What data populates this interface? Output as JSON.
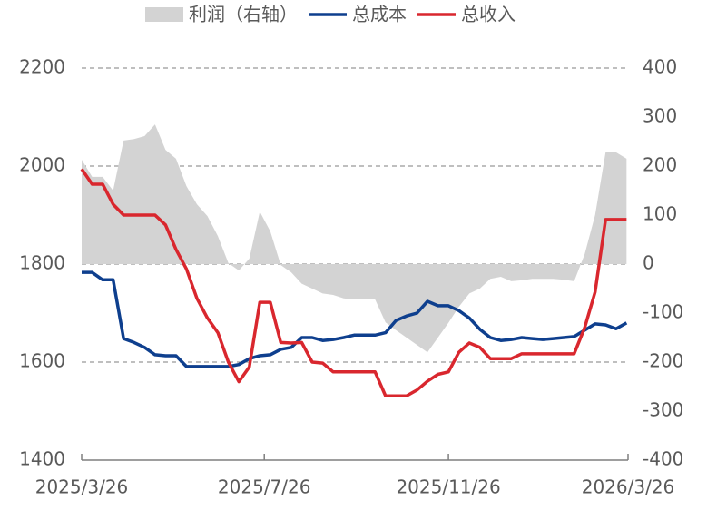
{
  "chart_data": {
    "type": "line",
    "x": [
      "2025/3/26",
      "2025/4/2",
      "2025/4/9",
      "2025/4/16",
      "2025/4/23",
      "2025/4/30",
      "2025/5/7",
      "2025/5/14",
      "2025/5/21",
      "2025/5/28",
      "2025/6/4",
      "2025/6/11",
      "2025/6/18",
      "2025/6/25",
      "2025/7/2",
      "2025/7/9",
      "2025/7/16",
      "2025/7/23",
      "2025/7/30",
      "2025/8/6",
      "2025/8/13",
      "2025/8/20",
      "2025/8/27",
      "2025/9/3",
      "2025/9/10",
      "2025/9/17",
      "2025/9/24",
      "2025/10/1",
      "2025/10/8",
      "2025/10/15",
      "2025/10/22",
      "2025/10/29",
      "2025/11/5",
      "2025/11/12",
      "2025/11/19",
      "2025/11/26",
      "2025/12/3",
      "2025/12/10",
      "2025/12/17",
      "2025/12/24",
      "2025/12/31",
      "2026/1/7",
      "2026/1/14",
      "2026/1/21",
      "2026/1/28",
      "2026/2/4",
      "2026/2/11",
      "2026/2/18",
      "2026/2/25",
      "2026/3/4",
      "2026/3/11",
      "2026/3/18",
      "2026/3/25"
    ],
    "series": [
      {
        "name": "利润（右轴）",
        "color": "#d3d3d3",
        "axis": "y2",
        "kind": "area",
        "values": [
          213,
          178,
          178,
          150,
          252,
          255,
          261,
          285,
          233,
          215,
          159,
          122,
          98,
          57,
          2,
          -13,
          11,
          107,
          67,
          -2,
          -17,
          -40,
          -50,
          -60,
          -63,
          -70,
          -72,
          -72,
          -72,
          -119,
          -135,
          -150,
          -165,
          -180,
          -150,
          -120,
          -87,
          -60,
          -50,
          -30,
          -26,
          -35,
          -33,
          -30,
          -30,
          -30,
          -32,
          -35,
          20,
          100,
          228,
          228,
          215
        ]
      },
      {
        "name": "总成本",
        "color": "#0e3f8e",
        "values": [
          1783,
          1783,
          1768,
          1768,
          1648,
          1640,
          1630,
          1615,
          1613,
          1613,
          1591,
          1591,
          1591,
          1591,
          1591,
          1595,
          1607,
          1613,
          1615,
          1626,
          1630,
          1650,
          1650,
          1644,
          1646,
          1650,
          1655,
          1655,
          1655,
          1660,
          1685,
          1694,
          1700,
          1724,
          1715,
          1715,
          1705,
          1690,
          1667,
          1650,
          1644,
          1646,
          1650,
          1648,
          1646,
          1648,
          1650,
          1652,
          1665,
          1678,
          1676,
          1668,
          1680
        ]
      },
      {
        "name": "总收入",
        "color": "#d9272e",
        "values": [
          1994,
          1963,
          1963,
          1922,
          1900,
          1900,
          1900,
          1900,
          1880,
          1830,
          1790,
          1730,
          1690,
          1660,
          1600,
          1560,
          1590,
          1722,
          1722,
          1640,
          1639,
          1640,
          1600,
          1598,
          1580,
          1580,
          1580,
          1580,
          1580,
          1531,
          1531,
          1531,
          1543,
          1561,
          1575,
          1580,
          1620,
          1639,
          1630,
          1607,
          1607,
          1607,
          1617,
          1617,
          1617,
          1617,
          1617,
          1617,
          1670,
          1743,
          1891,
          1891,
          1891
        ]
      }
    ],
    "xlim": [
      "2025/3/26",
      "2026/3/26"
    ],
    "xticks": [
      "2025/3/26",
      "2025/7/26",
      "2025/11/26",
      "2026/3/26"
    ],
    "ylim": [
      1400,
      2200
    ],
    "yticks": [
      1400,
      1600,
      1800,
      2000,
      2200
    ],
    "y2lim": [
      -400,
      400
    ],
    "y2ticks": [
      -400,
      -300,
      -200,
      -100,
      0,
      100,
      200,
      300,
      400
    ],
    "grid": true,
    "legend": "top"
  }
}
